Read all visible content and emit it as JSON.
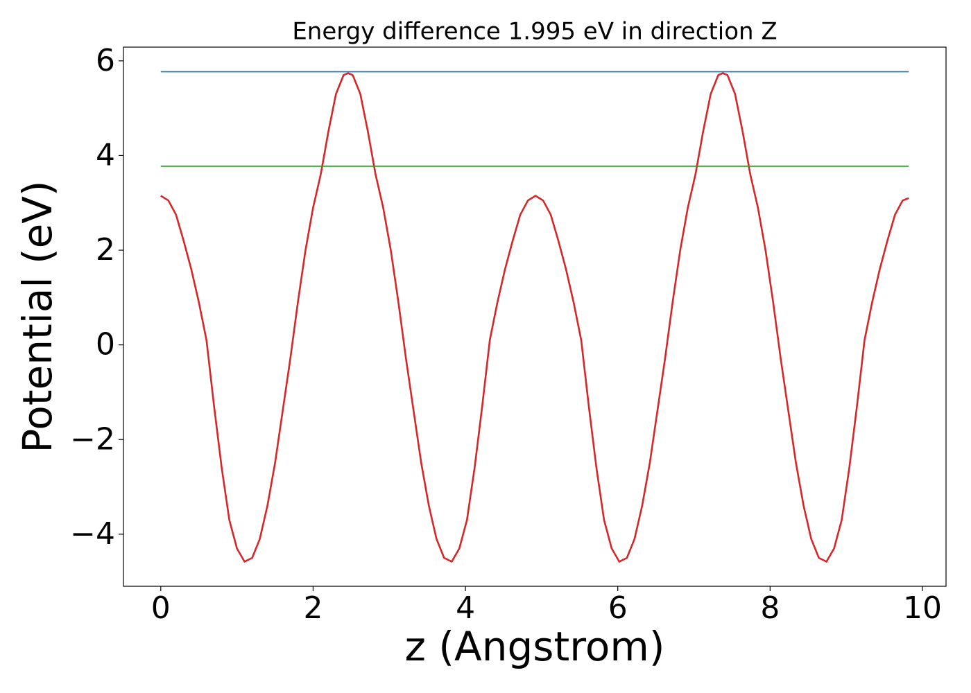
{
  "chart_data": {
    "type": "line",
    "title": "Energy difference 1.995 eV in direction Z",
    "xlabel": "z (Angstrom)",
    "ylabel": "Potential (eV)",
    "xlim": [
      -0.49,
      10.31
    ],
    "ylim": [
      -5.1,
      6.29
    ],
    "xticks": [
      0,
      2,
      4,
      6,
      8,
      10
    ],
    "yticks": [
      {
        "value": -4,
        "label": "−4"
      },
      {
        "value": -2,
        "label": "−2"
      },
      0,
      2,
      4,
      6
    ],
    "series": [
      {
        "color": "#d62728",
        "x": [
          0,
          0.1,
          0.2,
          0.3,
          0.4,
          0.5,
          0.6,
          0.7,
          0.8,
          0.9,
          1.0,
          1.1,
          1.2,
          1.3,
          1.4,
          1.5,
          1.6,
          1.7,
          1.8,
          1.9,
          2.0,
          2.1,
          2.2,
          2.3,
          2.4,
          2.46,
          2.52,
          2.62,
          2.72,
          2.82,
          2.92,
          3.02,
          3.12,
          3.22,
          3.32,
          3.42,
          3.52,
          3.62,
          3.72,
          3.82,
          3.92,
          4.02,
          4.12,
          4.22,
          4.32,
          4.42,
          4.52,
          4.62,
          4.72,
          4.82,
          4.92,
          5.02,
          5.12,
          5.22,
          5.32,
          5.42,
          5.52,
          5.62,
          5.72,
          5.82,
          5.92,
          6.02,
          6.12,
          6.22,
          6.32,
          6.42,
          6.52,
          6.62,
          6.72,
          6.82,
          6.92,
          7.02,
          7.12,
          7.22,
          7.32,
          7.38,
          7.44,
          7.54,
          7.64,
          7.74,
          7.84,
          7.94,
          8.04,
          8.14,
          8.24,
          8.34,
          8.44,
          8.54,
          8.64,
          8.74,
          8.84,
          8.94,
          9.04,
          9.14,
          9.24,
          9.34,
          9.44,
          9.54,
          9.64,
          9.74,
          9.82
        ],
        "values": [
          3.15,
          3.05,
          2.75,
          2.2,
          1.6,
          0.9,
          0.1,
          -1.3,
          -2.6,
          -3.7,
          -4.3,
          -4.58,
          -4.5,
          -4.1,
          -3.4,
          -2.5,
          -1.4,
          -0.3,
          0.9,
          2.0,
          2.9,
          3.6,
          4.5,
          5.3,
          5.7,
          5.74,
          5.7,
          5.3,
          4.5,
          3.6,
          2.9,
          2.0,
          0.9,
          -0.3,
          -1.4,
          -2.5,
          -3.4,
          -4.1,
          -4.5,
          -4.58,
          -4.3,
          -3.7,
          -2.6,
          -1.3,
          0.1,
          0.9,
          1.6,
          2.2,
          2.75,
          3.05,
          3.15,
          3.05,
          2.75,
          2.2,
          1.6,
          0.9,
          0.1,
          -1.3,
          -2.6,
          -3.7,
          -4.3,
          -4.58,
          -4.5,
          -4.1,
          -3.4,
          -2.5,
          -1.4,
          -0.3,
          0.9,
          2.0,
          2.9,
          3.6,
          4.5,
          5.3,
          5.7,
          5.74,
          5.7,
          5.3,
          4.5,
          3.6,
          2.9,
          2.0,
          0.9,
          -0.3,
          -1.4,
          -2.5,
          -3.4,
          -4.1,
          -4.5,
          -4.58,
          -4.3,
          -3.7,
          -2.6,
          -1.3,
          0.1,
          0.9,
          1.6,
          2.2,
          2.75,
          3.05,
          3.1
        ]
      },
      {
        "color": "#1f77b4",
        "x": [
          0,
          9.82
        ],
        "values": [
          5.77,
          5.77
        ]
      },
      {
        "color": "#2ca02c",
        "x": [
          0,
          9.82
        ],
        "values": [
          3.775,
          3.775
        ]
      }
    ]
  }
}
